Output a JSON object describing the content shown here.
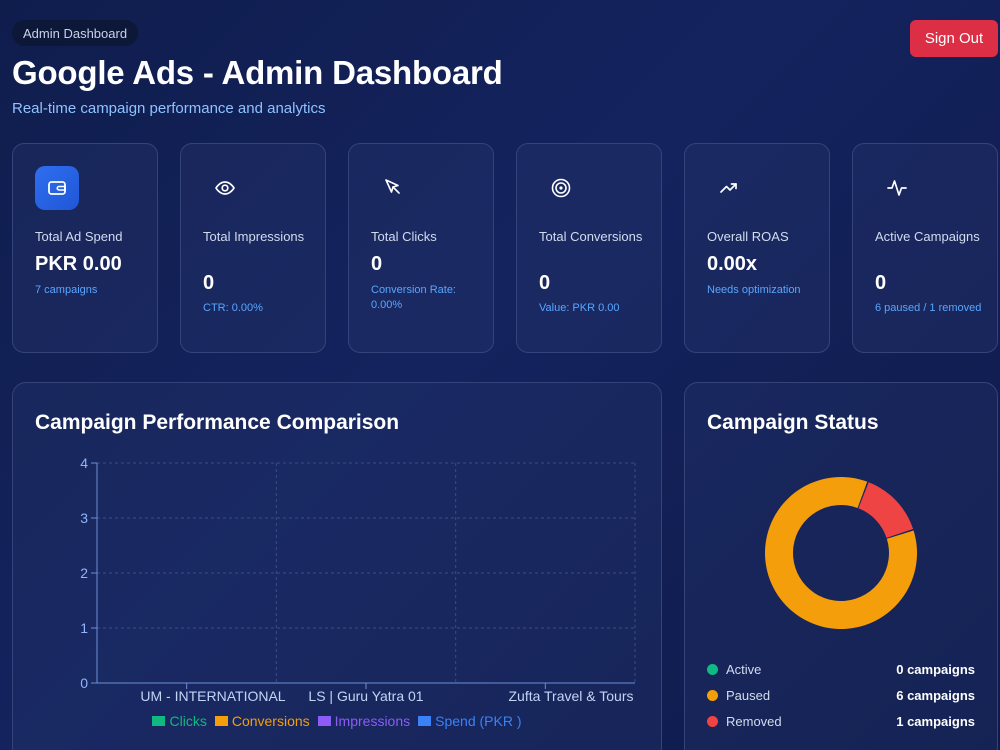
{
  "header": {
    "badge": "Admin Dashboard",
    "title": "Google Ads - Admin Dashboard",
    "subtitle": "Real-time campaign performance and analytics",
    "sign_out": "Sign Out"
  },
  "stats": [
    {
      "icon": "wallet-icon",
      "label": "Total Ad Spend",
      "value": "PKR 0.00",
      "sub": "7 campaigns"
    },
    {
      "icon": "eye-icon",
      "label": "Total Impressions",
      "value": "0",
      "sub": "CTR: 0.00%"
    },
    {
      "icon": "cursor-icon",
      "label": "Total Clicks",
      "value": "0",
      "sub": "Conversion Rate: 0.00%"
    },
    {
      "icon": "target-icon",
      "label": "Total Conversions",
      "value": "0",
      "sub": "Value: PKR 0.00"
    },
    {
      "icon": "trending-up-icon",
      "label": "Overall ROAS",
      "value": "0.00x",
      "sub": "Needs optimization"
    },
    {
      "icon": "activity-icon",
      "label": "Active Campaigns",
      "value": "0",
      "sub": "6 paused / 1 removed"
    }
  ],
  "performance": {
    "title": "Campaign Performance Comparison"
  },
  "status": {
    "title": "Campaign Status",
    "items": [
      {
        "name": "Active",
        "count": "0 campaigns",
        "color": "#10b981"
      },
      {
        "name": "Paused",
        "count": "6 campaigns",
        "color": "#f59e0b"
      },
      {
        "name": "Removed",
        "count": "1 campaigns",
        "color": "#ef4444"
      }
    ]
  },
  "chart_data": [
    {
      "type": "bar",
      "categories": [
        "UM - INTERNATIONAL",
        "LS | Guru Yatra 01",
        "Zufta Travel & Tours"
      ],
      "yticks": [
        "0",
        "1",
        "2",
        "3",
        "4"
      ],
      "ylim": [
        0,
        4
      ],
      "grid": true,
      "legend_position": "bottom",
      "series": [
        {
          "name": "Clicks",
          "values": [
            0,
            0,
            0
          ],
          "color": "#10b981"
        },
        {
          "name": "Conversions",
          "values": [
            0,
            0,
            0
          ],
          "color": "#f59e0b"
        },
        {
          "name": "Impressions",
          "values": [
            0,
            0,
            0
          ],
          "color": "#8b5cf6"
        },
        {
          "name": "Spend (PKR )",
          "values": [
            0,
            0,
            0
          ],
          "color": "#3b82f6"
        }
      ]
    },
    {
      "type": "pie",
      "categories": [
        "Active",
        "Paused",
        "Removed"
      ],
      "values": [
        0,
        6,
        1
      ],
      "colors": [
        "#10b981",
        "#f59e0b",
        "#ef4444"
      ]
    }
  ]
}
